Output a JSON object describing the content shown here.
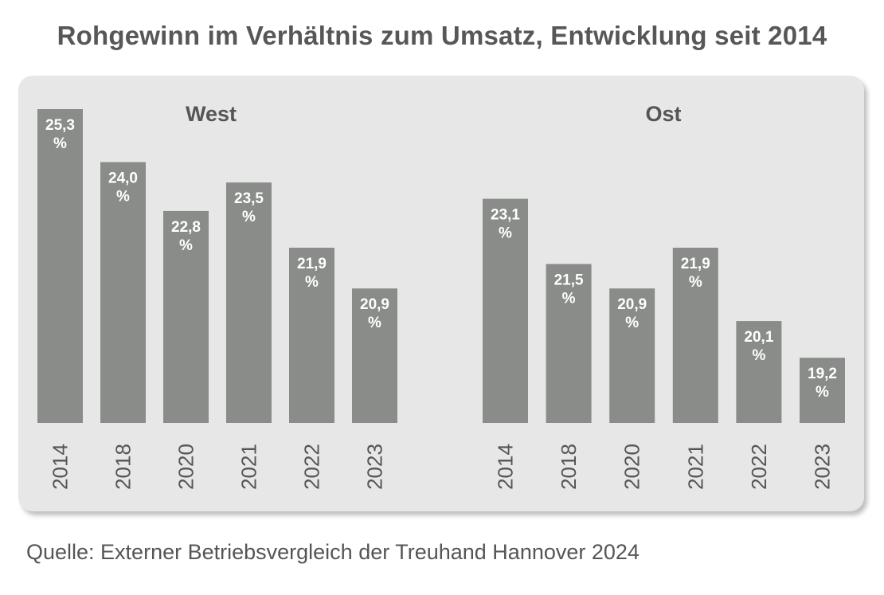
{
  "title": "Rohgewinn im Verhältnis zum Umsatz, Entwicklung seit 2014",
  "source": "Quelle: Externer Betriebsvergleich der Treuhand Hannover 2024",
  "colors": {
    "bar": "#8a8c8a",
    "panel": "#e7e7e7",
    "text": "#555555",
    "label": "#ffffff"
  },
  "chart_data": [
    {
      "type": "bar",
      "title": "West",
      "categories": [
        "2014",
        "2018",
        "2020",
        "2021",
        "2022",
        "2023"
      ],
      "values": [
        25.3,
        24.0,
        22.8,
        23.5,
        21.9,
        20.9
      ],
      "labels": [
        "25,3 %",
        "24,0 %",
        "22,8 %",
        "23,5 %",
        "21,9 %",
        "20,9 %"
      ],
      "ylim": [
        17.6,
        25.3
      ],
      "grid": false
    },
    {
      "type": "bar",
      "title": "Ost",
      "categories": [
        "2014",
        "2018",
        "2020",
        "2021",
        "2022",
        "2023"
      ],
      "values": [
        23.1,
        21.5,
        20.9,
        21.9,
        20.1,
        19.2
      ],
      "labels": [
        "23,1 %",
        "21,5 %",
        "20,9 %",
        "21,9 %",
        "20,1 %",
        "19,2 %"
      ],
      "ylim": [
        17.6,
        25.3
      ],
      "grid": false
    }
  ]
}
